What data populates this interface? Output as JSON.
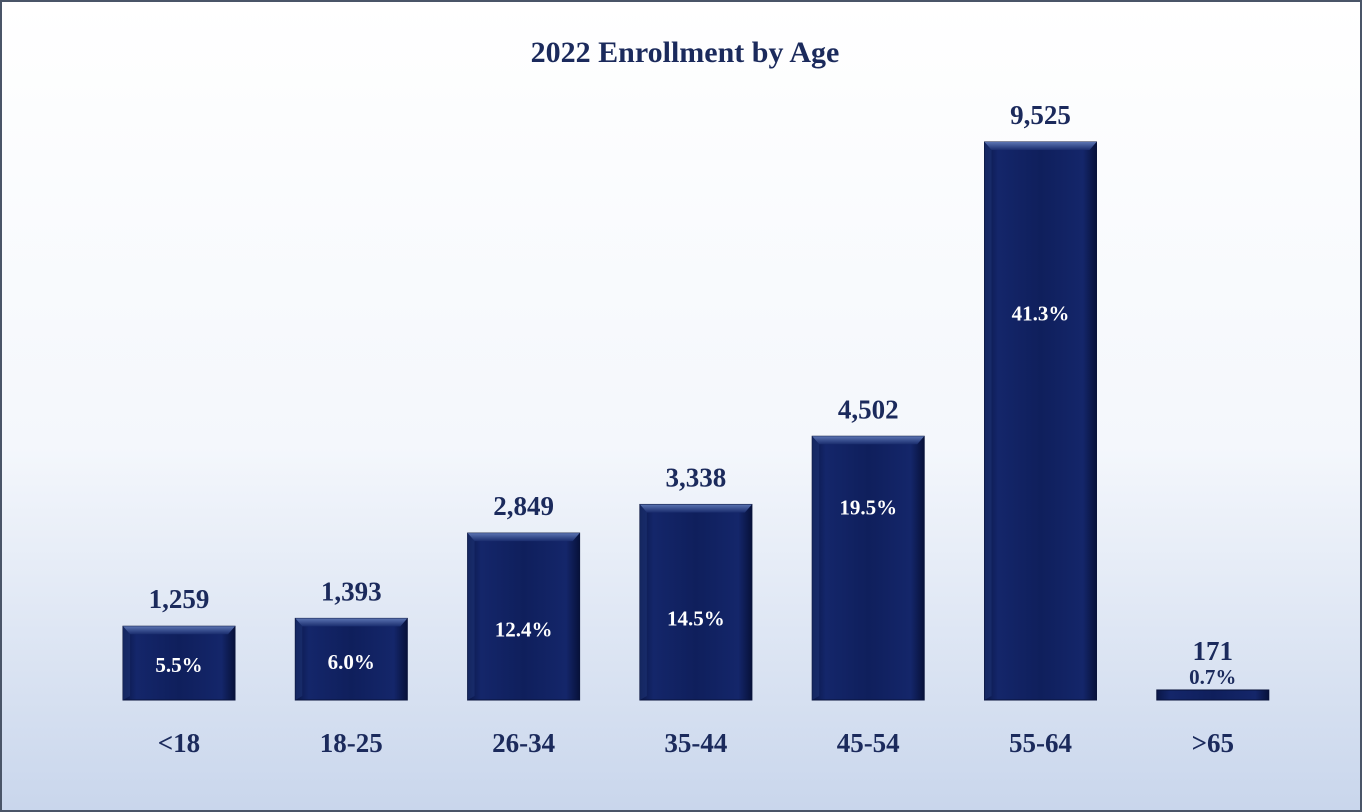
{
  "chart_data": {
    "type": "bar",
    "title": "2022 Enrollment by Age",
    "xlabel": "",
    "ylabel": "",
    "categories": [
      "<18",
      "18-25",
      "26-34",
      "35-44",
      "45-54",
      "55-64",
      ">65"
    ],
    "values": [
      1259,
      1393,
      2849,
      3338,
      4502,
      9525,
      171
    ],
    "value_labels": [
      "1,259",
      "1,393",
      "2,849",
      "3,338",
      "4,502",
      "9,525",
      "171"
    ],
    "percent_labels": [
      "5.5%",
      "6.0%",
      "12.4%",
      "14.5%",
      "19.5%",
      "41.3%",
      "0.7%"
    ],
    "ylim": [
      0,
      9525
    ],
    "grid": false,
    "legend": "none",
    "colors": {
      "bar": "#0f1f5c",
      "bar_dark": "#08123a",
      "bar_light": "#3c5796",
      "text": "#1b2a5c",
      "inner_text": "#ffffff"
    }
  }
}
